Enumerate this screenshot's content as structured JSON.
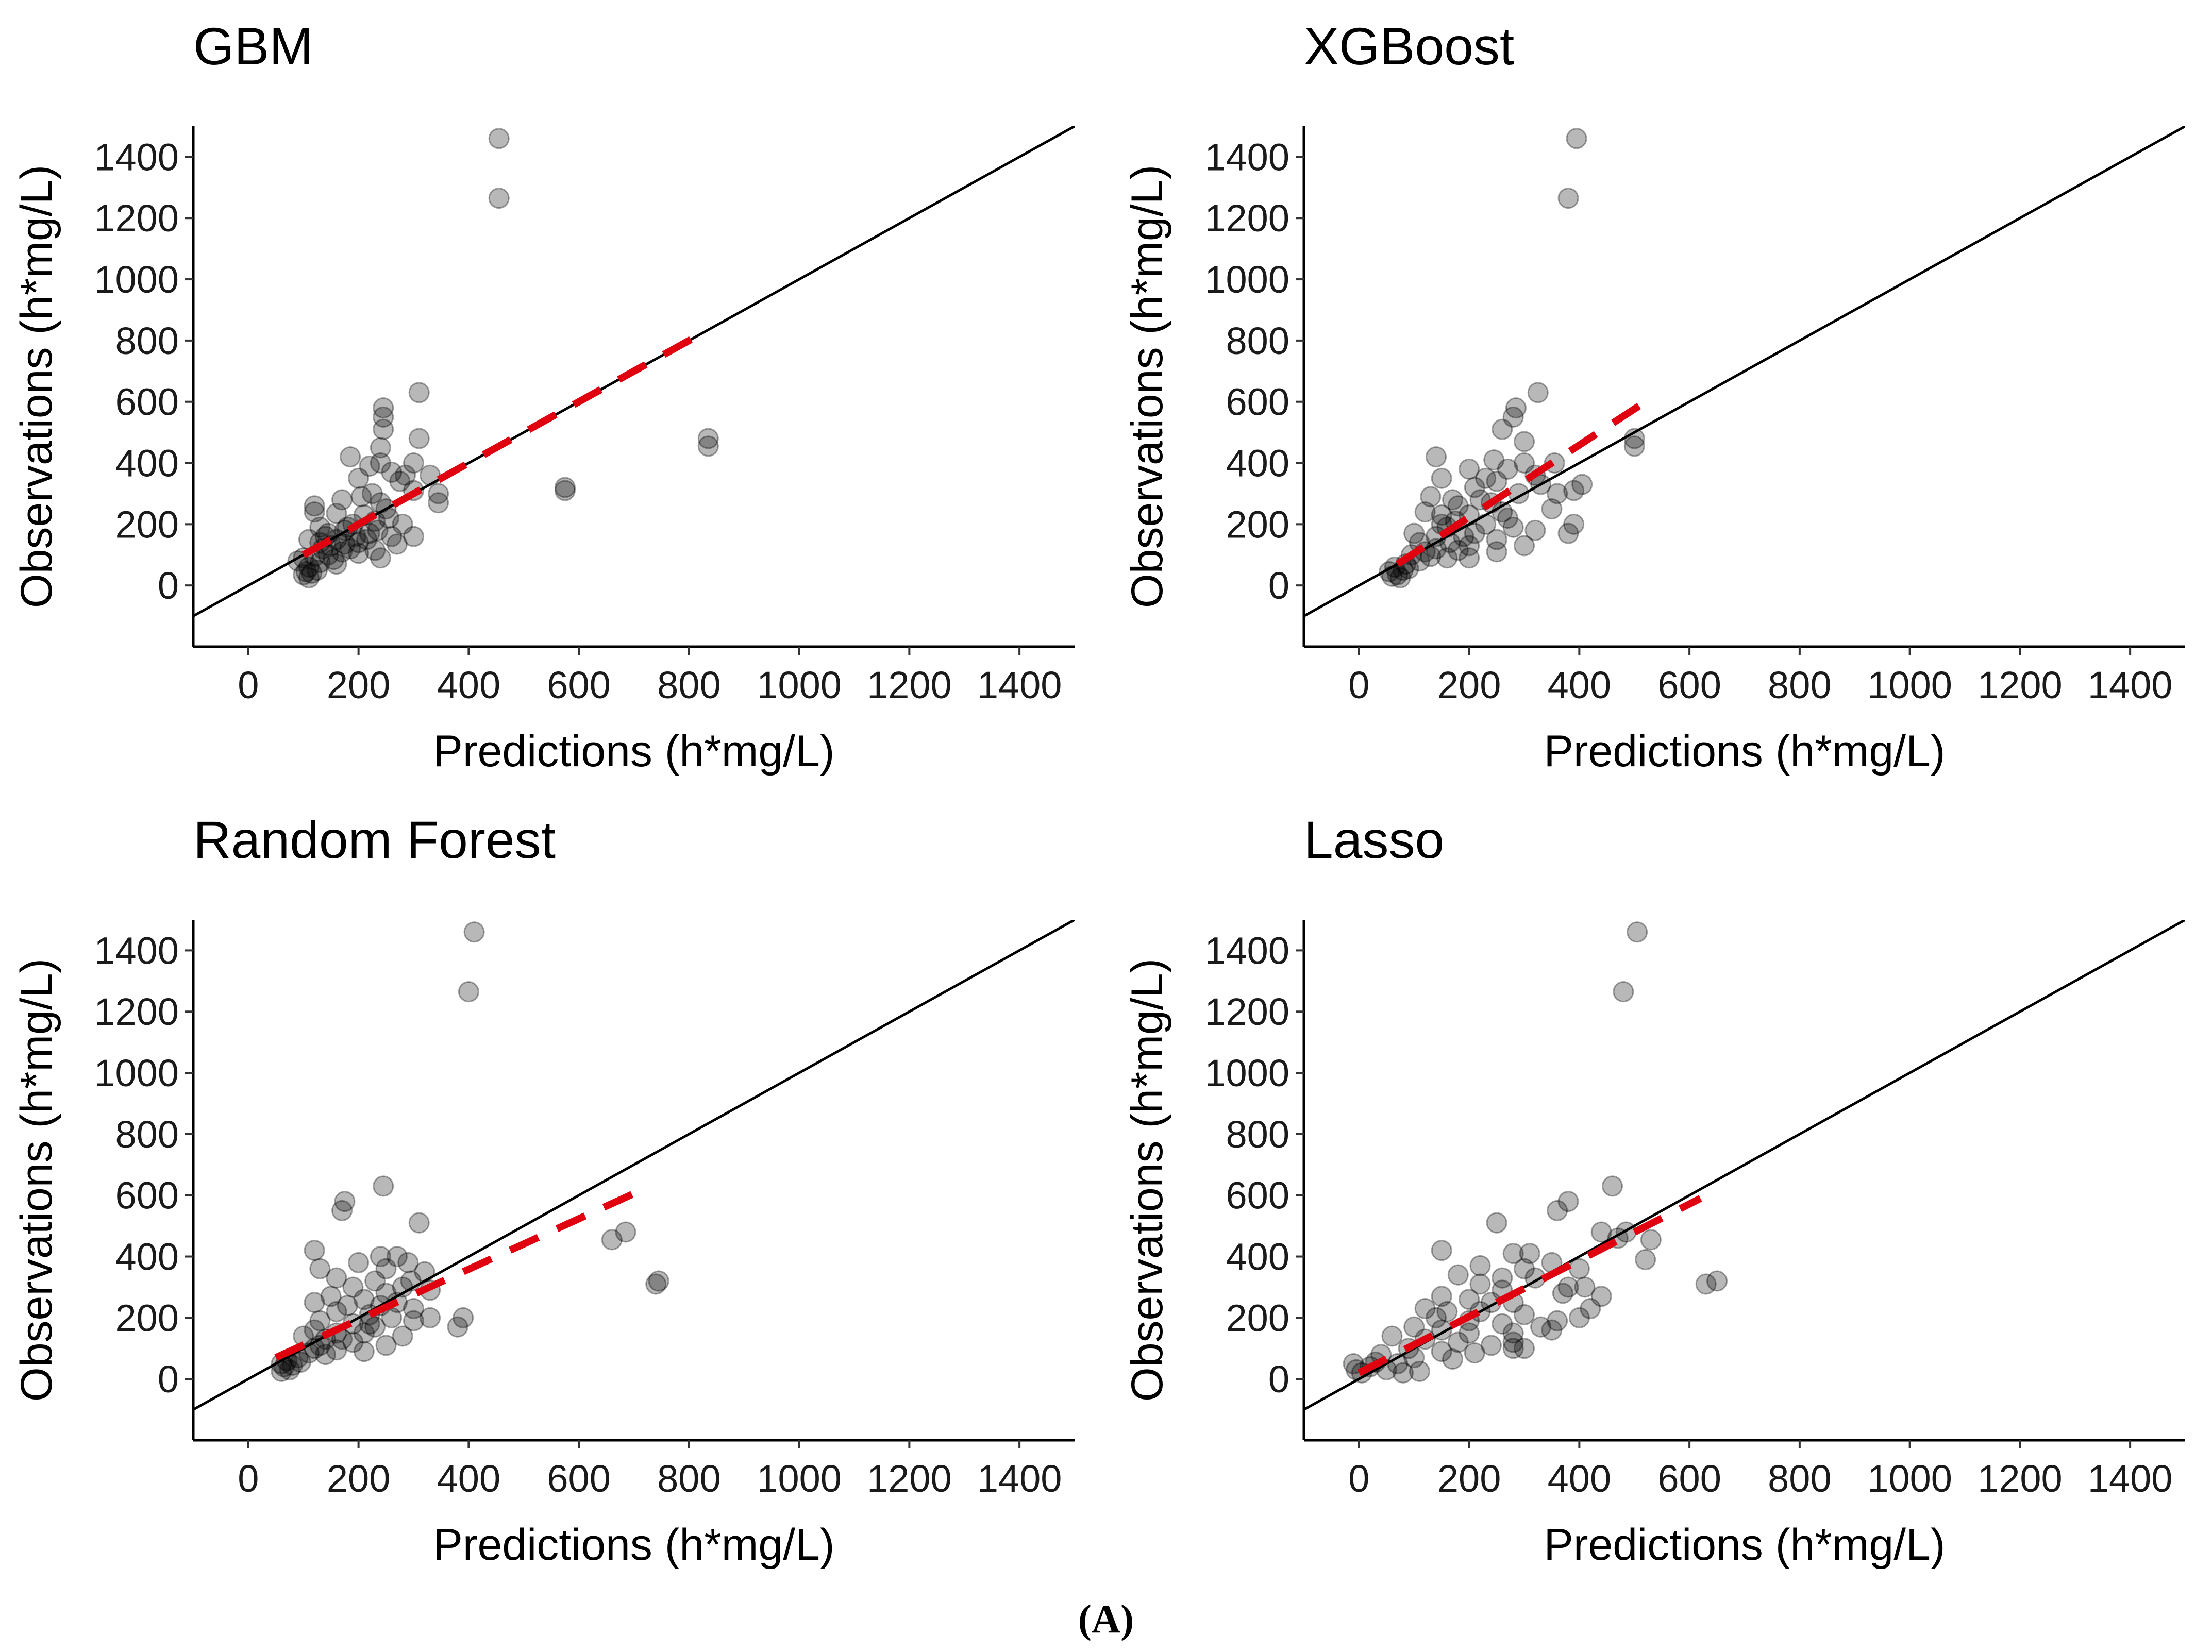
{
  "figure": {
    "caption": "(A)",
    "colors": {
      "points": "#000000",
      "identity": "#000000",
      "fit": "#e0000f"
    }
  },
  "chart_data": [
    {
      "type": "scatter",
      "title": "GBM",
      "xlabel": "Predictions (h*mg/L)",
      "ylabel": "Observations (h*mg/L)",
      "xlim": [
        -100,
        1500
      ],
      "ylim": [
        -200,
        1500
      ],
      "xticks": [
        0,
        200,
        400,
        600,
        800,
        1000,
        1200,
        1400
      ],
      "yticks": [
        0,
        200,
        400,
        600,
        800,
        1000,
        1200,
        1400
      ],
      "identity_line": {
        "from": [
          -100,
          -100
        ],
        "to": [
          1520,
          1520
        ]
      },
      "fit_line": {
        "from": [
          100,
          100
        ],
        "to": [
          830,
          830
        ]
      },
      "points": [
        [
          455,
          1460
        ],
        [
          455,
          1265
        ],
        [
          835,
          480
        ],
        [
          835,
          455
        ],
        [
          575,
          320
        ],
        [
          575,
          310
        ],
        [
          310,
          630
        ],
        [
          245,
          580
        ],
        [
          245,
          550
        ],
        [
          245,
          510
        ],
        [
          310,
          480
        ],
        [
          240,
          450
        ],
        [
          185,
          420
        ],
        [
          240,
          400
        ],
        [
          300,
          400
        ],
        [
          220,
          390
        ],
        [
          260,
          370
        ],
        [
          330,
          360
        ],
        [
          200,
          350
        ],
        [
          275,
          340
        ],
        [
          345,
          300
        ],
        [
          345,
          270
        ],
        [
          300,
          310
        ],
        [
          225,
          300
        ],
        [
          205,
          290
        ],
        [
          170,
          280
        ],
        [
          240,
          270
        ],
        [
          120,
          260
        ],
        [
          120,
          240
        ],
        [
          160,
          235
        ],
        [
          210,
          230
        ],
        [
          255,
          220
        ],
        [
          230,
          210
        ],
        [
          190,
          200
        ],
        [
          280,
          200
        ],
        [
          130,
          190
        ],
        [
          175,
          180
        ],
        [
          220,
          170
        ],
        [
          260,
          160
        ],
        [
          300,
          160
        ],
        [
          140,
          160
        ],
        [
          160,
          150
        ],
        [
          110,
          150
        ],
        [
          130,
          140
        ],
        [
          200,
          140
        ],
        [
          270,
          135
        ],
        [
          150,
          130
        ],
        [
          185,
          120
        ],
        [
          230,
          115
        ],
        [
          170,
          110
        ],
        [
          200,
          105
        ],
        [
          145,
          100
        ],
        [
          120,
          95
        ],
        [
          100,
          90
        ],
        [
          240,
          90
        ],
        [
          155,
          85
        ],
        [
          90,
          80
        ],
        [
          130,
          75
        ],
        [
          160,
          70
        ],
        [
          110,
          60
        ],
        [
          125,
          50
        ],
        [
          105,
          45
        ],
        [
          100,
          35
        ],
        [
          110,
          25
        ],
        [
          115,
          40
        ],
        [
          135,
          120
        ],
        [
          175,
          135
        ],
        [
          195,
          160
        ],
        [
          215,
          150
        ],
        [
          235,
          180
        ],
        [
          250,
          250
        ],
        [
          285,
          360
        ],
        [
          180,
          190
        ],
        [
          145,
          170
        ]
      ]
    },
    {
      "type": "scatter",
      "title": "XGBoost",
      "xlabel": "Predictions (h*mg/L)",
      "ylabel": "Observations (h*mg/L)",
      "xlim": [
        -100,
        1500
      ],
      "ylim": [
        -200,
        1500
      ],
      "xticks": [
        0,
        200,
        400,
        600,
        800,
        1000,
        1200,
        1400
      ],
      "yticks": [
        0,
        200,
        400,
        600,
        800,
        1000,
        1200,
        1400
      ],
      "identity_line": {
        "from": [
          -100,
          -100
        ],
        "to": [
          1520,
          1520
        ]
      },
      "fit_line": {
        "from": [
          70,
          70
        ],
        "to": [
          520,
          600
        ]
      },
      "points": [
        [
          395,
          1460
        ],
        [
          380,
          1265
        ],
        [
          325,
          630
        ],
        [
          285,
          580
        ],
        [
          280,
          550
        ],
        [
          260,
          510
        ],
        [
          500,
          480
        ],
        [
          500,
          455
        ],
        [
          300,
          470
        ],
        [
          140,
          420
        ],
        [
          245,
          410
        ],
        [
          300,
          400
        ],
        [
          355,
          400
        ],
        [
          200,
          380
        ],
        [
          270,
          380
        ],
        [
          320,
          360
        ],
        [
          150,
          350
        ],
        [
          230,
          350
        ],
        [
          250,
          340
        ],
        [
          330,
          330
        ],
        [
          405,
          330
        ],
        [
          390,
          310
        ],
        [
          210,
          320
        ],
        [
          290,
          300
        ],
        [
          360,
          300
        ],
        [
          130,
          290
        ],
        [
          170,
          280
        ],
        [
          240,
          270
        ],
        [
          180,
          260
        ],
        [
          350,
          250
        ],
        [
          120,
          240
        ],
        [
          150,
          230
        ],
        [
          200,
          230
        ],
        [
          270,
          220
        ],
        [
          175,
          210
        ],
        [
          230,
          200
        ],
        [
          390,
          200
        ],
        [
          150,
          200
        ],
        [
          280,
          190
        ],
        [
          320,
          180
        ],
        [
          380,
          170
        ],
        [
          100,
          170
        ],
        [
          140,
          160
        ],
        [
          190,
          160
        ],
        [
          250,
          150
        ],
        [
          110,
          140
        ],
        [
          165,
          140
        ],
        [
          200,
          130
        ],
        [
          300,
          130
        ],
        [
          140,
          120
        ],
        [
          180,
          115
        ],
        [
          250,
          110
        ],
        [
          95,
          100
        ],
        [
          130,
          95
        ],
        [
          160,
          90
        ],
        [
          200,
          90
        ],
        [
          110,
          80
        ],
        [
          85,
          70
        ],
        [
          65,
          60
        ],
        [
          80,
          50
        ],
        [
          55,
          45
        ],
        [
          70,
          35
        ],
        [
          75,
          25
        ],
        [
          60,
          30
        ],
        [
          90,
          55
        ],
        [
          120,
          110
        ],
        [
          210,
          170
        ],
        [
          260,
          240
        ],
        [
          220,
          280
        ],
        [
          160,
          190
        ]
      ]
    },
    {
      "type": "scatter",
      "title": "Random Forest",
      "xlabel": "Predictions (h*mg/L)",
      "ylabel": "Observations (h*mg/L)",
      "xlim": [
        -100,
        1500
      ],
      "ylim": [
        -200,
        1500
      ],
      "xticks": [
        0,
        200,
        400,
        600,
        800,
        1000,
        1200,
        1400
      ],
      "yticks": [
        0,
        200,
        400,
        600,
        800,
        1000,
        1200,
        1400
      ],
      "identity_line": {
        "from": [
          -100,
          -100
        ],
        "to": [
          1520,
          1520
        ]
      },
      "fit_line": {
        "from": [
          50,
          70
        ],
        "to": [
          705,
          610
        ]
      },
      "points": [
        [
          410,
          1460
        ],
        [
          400,
          1265
        ],
        [
          245,
          630
        ],
        [
          175,
          580
        ],
        [
          170,
          550
        ],
        [
          310,
          510
        ],
        [
          685,
          480
        ],
        [
          660,
          455
        ],
        [
          745,
          320
        ],
        [
          740,
          310
        ],
        [
          120,
          420
        ],
        [
          240,
          400
        ],
        [
          270,
          400
        ],
        [
          200,
          380
        ],
        [
          290,
          380
        ],
        [
          130,
          360
        ],
        [
          250,
          360
        ],
        [
          320,
          350
        ],
        [
          160,
          330
        ],
        [
          230,
          320
        ],
        [
          295,
          320
        ],
        [
          190,
          300
        ],
        [
          280,
          300
        ],
        [
          330,
          290
        ],
        [
          150,
          270
        ],
        [
          210,
          260
        ],
        [
          270,
          250
        ],
        [
          120,
          250
        ],
        [
          180,
          240
        ],
        [
          240,
          240
        ],
        [
          300,
          230
        ],
        [
          330,
          200
        ],
        [
          390,
          200
        ],
        [
          160,
          220
        ],
        [
          220,
          210
        ],
        [
          260,
          200
        ],
        [
          300,
          190
        ],
        [
          380,
          170
        ],
        [
          130,
          190
        ],
        [
          190,
          180
        ],
        [
          230,
          170
        ],
        [
          120,
          160
        ],
        [
          160,
          150
        ],
        [
          210,
          150
        ],
        [
          280,
          140
        ],
        [
          100,
          140
        ],
        [
          140,
          130
        ],
        [
          190,
          120
        ],
        [
          250,
          110
        ],
        [
          120,
          100
        ],
        [
          160,
          95
        ],
        [
          210,
          90
        ],
        [
          110,
          85
        ],
        [
          140,
          80
        ],
        [
          90,
          70
        ],
        [
          70,
          60
        ],
        [
          60,
          50
        ],
        [
          80,
          45
        ],
        [
          65,
          40
        ],
        [
          75,
          30
        ],
        [
          60,
          25
        ],
        [
          95,
          55
        ],
        [
          130,
          110
        ],
        [
          170,
          130
        ],
        [
          250,
          280
        ],
        [
          220,
          180
        ]
      ]
    },
    {
      "type": "scatter",
      "title": "Lasso",
      "xlabel": "Predictions (h*mg/L)",
      "ylabel": "Observations (h*mg/L)",
      "xlim": [
        -100,
        1500
      ],
      "ylim": [
        -200,
        1500
      ],
      "xticks": [
        0,
        200,
        400,
        600,
        800,
        1000,
        1200,
        1400
      ],
      "yticks": [
        0,
        200,
        400,
        600,
        800,
        1000,
        1200,
        1400
      ],
      "identity_line": {
        "from": [
          -100,
          -100
        ],
        "to": [
          1520,
          1520
        ]
      },
      "fit_line": {
        "from": [
          0,
          20
        ],
        "to": [
          620,
          590
        ]
      },
      "points": [
        [
          505,
          1460
        ],
        [
          480,
          1265
        ],
        [
          460,
          630
        ],
        [
          380,
          580
        ],
        [
          360,
          550
        ],
        [
          250,
          510
        ],
        [
          485,
          480
        ],
        [
          440,
          480
        ],
        [
          530,
          455
        ],
        [
          470,
          460
        ],
        [
          150,
          420
        ],
        [
          280,
          410
        ],
        [
          310,
          410
        ],
        [
          350,
          380
        ],
        [
          520,
          390
        ],
        [
          220,
          370
        ],
        [
          300,
          360
        ],
        [
          400,
          360
        ],
        [
          180,
          340
        ],
        [
          260,
          330
        ],
        [
          320,
          330
        ],
        [
          410,
          300
        ],
        [
          380,
          300
        ],
        [
          220,
          310
        ],
        [
          260,
          290
        ],
        [
          370,
          280
        ],
        [
          440,
          270
        ],
        [
          150,
          270
        ],
        [
          200,
          260
        ],
        [
          240,
          250
        ],
        [
          280,
          250
        ],
        [
          120,
          230
        ],
        [
          160,
          220
        ],
        [
          220,
          220
        ],
        [
          300,
          210
        ],
        [
          420,
          230
        ],
        [
          360,
          190
        ],
        [
          140,
          200
        ],
        [
          200,
          190
        ],
        [
          260,
          180
        ],
        [
          330,
          170
        ],
        [
          100,
          170
        ],
        [
          150,
          160
        ],
        [
          200,
          150
        ],
        [
          280,
          150
        ],
        [
          60,
          140
        ],
        [
          120,
          130
        ],
        [
          180,
          120
        ],
        [
          240,
          110
        ],
        [
          280,
          100
        ],
        [
          90,
          100
        ],
        [
          150,
          90
        ],
        [
          210,
          85
        ],
        [
          40,
          80
        ],
        [
          100,
          70
        ],
        [
          170,
          65
        ],
        [
          30,
          55
        ],
        [
          70,
          50
        ],
        [
          -10,
          50
        ],
        [
          20,
          40
        ],
        [
          50,
          30
        ],
        [
          80,
          20
        ],
        [
          110,
          25
        ],
        [
          -5,
          30
        ],
        [
          5,
          20
        ],
        [
          650,
          320
        ],
        [
          630,
          310
        ],
        [
          300,
          100
        ],
        [
          280,
          120
        ],
        [
          350,
          160
        ],
        [
          400,
          200
        ]
      ]
    }
  ]
}
